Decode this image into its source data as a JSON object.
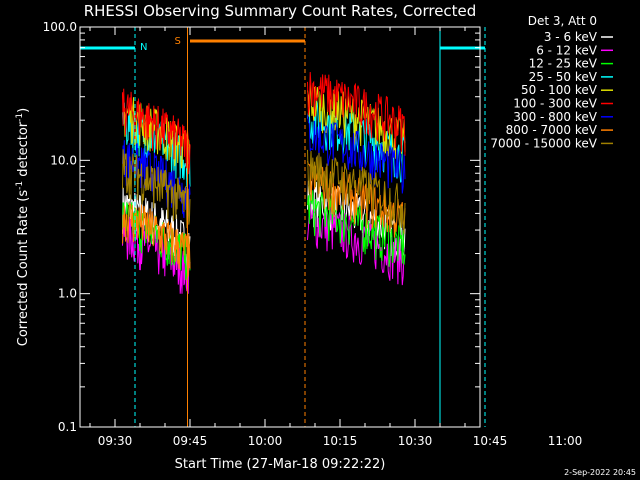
{
  "chart_data": {
    "type": "line",
    "title": "RHESSI Observing Summary Count Rates, Corrected",
    "xlabel": "Start Time (27-Mar-18 09:22:22)",
    "ylabel_main": "Corrected Count Rate (s",
    "ylabel_sup1": "-1",
    "ylabel_mid": " detector",
    "ylabel_sup2": "-1",
    "ylabel_end": ")",
    "yscale": "log",
    "ylim": [
      0.1,
      100
    ],
    "xlim_minutes": [
      23,
      103
    ],
    "x_ticks": [
      {
        "t": 30,
        "label": "09:30"
      },
      {
        "t": 45,
        "label": "09:45"
      },
      {
        "t": 60,
        "label": "10:00"
      },
      {
        "t": 75,
        "label": "10:15"
      },
      {
        "t": 90,
        "label": "10:30"
      },
      {
        "t": 105,
        "label": "10:45"
      },
      {
        "t": 120,
        "label": "11:00"
      }
    ],
    "y_ticks": [
      {
        "v": 0.1,
        "label": "0.1"
      },
      {
        "v": 1,
        "label": "1.0"
      },
      {
        "v": 10,
        "label": "10.0"
      },
      {
        "v": 100,
        "label": "100.0"
      }
    ],
    "legend_header": "Det 3, Att 0",
    "legend_placement": "right",
    "series": [
      {
        "name": "3 - 6 keV",
        "color": "#ffffff"
      },
      {
        "name": "6 - 12 keV",
        "color": "#ff00ff"
      },
      {
        "name": "12 - 25 keV",
        "color": "#00ff00"
      },
      {
        "name": "25 - 50 keV",
        "color": "#00ffff"
      },
      {
        "name": "50 - 100 keV",
        "color": "#e0e000"
      },
      {
        "name": "100 - 300 keV",
        "color": "#ff0000"
      },
      {
        "name": "300 - 800 keV",
        "color": "#0000ff"
      },
      {
        "name": "800 - 7000 keV",
        "color": "#ff8000"
      },
      {
        "name": "7000 - 15000 keV",
        "color": "#a08000"
      }
    ],
    "annotations": [
      {
        "label": "N",
        "color": "#00ffff"
      },
      {
        "label": "S",
        "color": "#ff8000"
      }
    ],
    "footer_date": "2-Sep-2022 20:45"
  }
}
